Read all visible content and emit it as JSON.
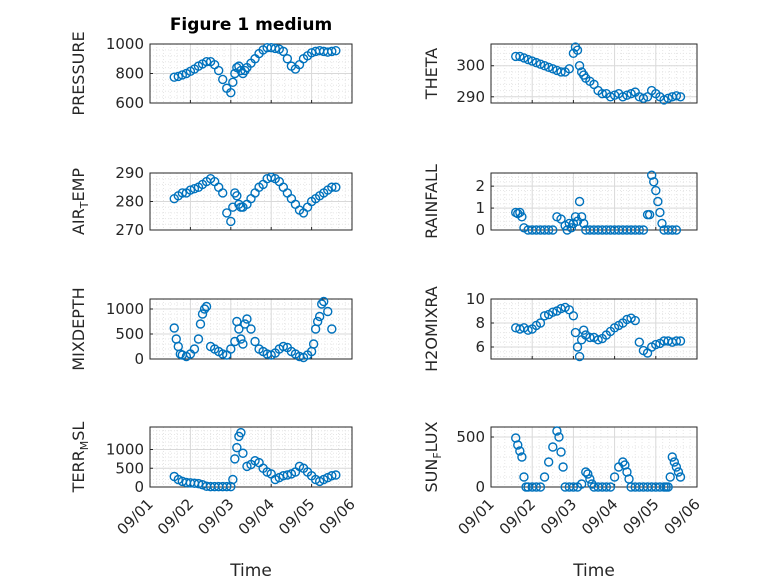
{
  "figure_title": "Figure 1 medium",
  "colors": {
    "marker": "#0072BD",
    "axis": "#262626",
    "grid": "#d9d9d9"
  },
  "chart_data": [
    {
      "type": "scatter",
      "title": "Figure 1 medium",
      "ylabel": "PRESSURE",
      "ylabel_sub": "",
      "ylabel_rest": "",
      "ylim": [
        600,
        1000
      ],
      "yticks": [
        600,
        800,
        1000
      ],
      "xlim": [
        0,
        5
      ],
      "grid": true,
      "x": [
        0.6,
        0.7,
        0.8,
        0.9,
        1.0,
        1.1,
        1.2,
        1.3,
        1.4,
        1.5,
        1.6,
        1.7,
        1.8,
        1.9,
        2.0,
        2.05,
        2.1,
        2.15,
        2.2,
        2.25,
        2.3,
        2.35,
        2.4,
        2.5,
        2.6,
        2.7,
        2.8,
        2.9,
        3.0,
        3.1,
        3.2,
        3.3,
        3.4,
        3.5,
        3.6,
        3.7,
        3.8,
        3.9,
        4.0,
        4.1,
        4.2,
        4.3,
        4.4,
        4.5,
        4.6
      ],
      "y": [
        775,
        780,
        790,
        800,
        815,
        830,
        850,
        865,
        880,
        880,
        860,
        820,
        760,
        700,
        670,
        740,
        800,
        840,
        850,
        820,
        800,
        820,
        840,
        870,
        900,
        935,
        960,
        975,
        975,
        970,
        965,
        950,
        900,
        850,
        830,
        860,
        900,
        920,
        940,
        950,
        955,
        950,
        945,
        950,
        955
      ]
    },
    {
      "type": "scatter",
      "ylabel": "THETA",
      "ylabel_sub": "",
      "ylabel_rest": "",
      "ylim": [
        288,
        307
      ],
      "yticks": [
        290,
        300
      ],
      "xlim": [
        0,
        5
      ],
      "grid": true,
      "x": [
        0.6,
        0.7,
        0.8,
        0.9,
        1.0,
        1.1,
        1.2,
        1.3,
        1.4,
        1.5,
        1.6,
        1.7,
        1.8,
        1.9,
        2.0,
        2.05,
        2.1,
        2.15,
        2.2,
        2.25,
        2.3,
        2.4,
        2.5,
        2.6,
        2.7,
        2.8,
        2.9,
        3.0,
        3.1,
        3.2,
        3.3,
        3.4,
        3.5,
        3.6,
        3.7,
        3.8,
        3.9,
        4.0,
        4.1,
        4.2,
        4.3,
        4.4,
        4.5,
        4.6
      ],
      "y": [
        303,
        303,
        302.5,
        302,
        301.5,
        301,
        300.5,
        300,
        299.5,
        299,
        298.5,
        298,
        298,
        299,
        304,
        306,
        305,
        300,
        298,
        297,
        296,
        295,
        294,
        292,
        291,
        291,
        290,
        290.5,
        291,
        290,
        290.5,
        291,
        291.5,
        290,
        289.5,
        290,
        292,
        291,
        290,
        289,
        289.5,
        290,
        290.3,
        290
      ],
      "series_name": ""
    },
    {
      "type": "scatter",
      "ylabel": "AIR",
      "ylabel_sub": "T",
      "ylabel_rest": "EMP",
      "ylim": [
        270,
        290
      ],
      "yticks": [
        270,
        280,
        290
      ],
      "xlim": [
        0,
        5
      ],
      "grid": true,
      "x": [
        0.6,
        0.7,
        0.8,
        0.9,
        1.0,
        1.1,
        1.2,
        1.3,
        1.4,
        1.5,
        1.6,
        1.7,
        1.8,
        1.9,
        2.0,
        2.05,
        2.1,
        2.15,
        2.2,
        2.25,
        2.3,
        2.4,
        2.5,
        2.6,
        2.7,
        2.8,
        2.9,
        3.0,
        3.1,
        3.2,
        3.3,
        3.4,
        3.5,
        3.6,
        3.7,
        3.8,
        3.9,
        4.0,
        4.1,
        4.2,
        4.3,
        4.4,
        4.5,
        4.6
      ],
      "y": [
        281,
        282,
        283,
        283,
        284,
        284.5,
        285,
        286,
        287,
        288,
        287,
        285,
        283,
        276,
        273,
        278,
        283,
        282,
        279,
        278,
        278,
        279,
        281,
        283,
        285,
        286,
        288,
        288.5,
        288,
        287,
        285,
        283,
        281,
        279,
        277,
        276,
        278,
        280,
        281,
        282,
        283,
        284,
        285,
        285
      ]
    },
    {
      "type": "scatter",
      "ylabel": "RAINFALL",
      "ylabel_sub": "",
      "ylabel_rest": "",
      "ylim": [
        0,
        2.6
      ],
      "yticks": [
        0,
        1,
        2
      ],
      "xlim": [
        0,
        5
      ],
      "grid": true,
      "x": [
        0.6,
        0.65,
        0.7,
        0.75,
        0.8,
        0.9,
        1.0,
        1.1,
        1.2,
        1.3,
        1.4,
        1.5,
        1.6,
        1.7,
        1.8,
        1.85,
        1.9,
        1.95,
        2.0,
        2.05,
        2.1,
        2.15,
        2.2,
        2.25,
        2.3,
        2.4,
        2.5,
        2.6,
        2.7,
        2.8,
        2.9,
        3.0,
        3.1,
        3.2,
        3.3,
        3.4,
        3.5,
        3.6,
        3.7,
        3.8,
        3.85,
        3.9,
        3.95,
        4.0,
        4.05,
        4.1,
        4.15,
        4.2,
        4.3,
        4.4,
        4.5
      ],
      "y": [
        0.8,
        0.75,
        0.8,
        0.6,
        0.1,
        0,
        0,
        0,
        0,
        0,
        0,
        0,
        0.6,
        0.5,
        0.2,
        0,
        0.3,
        0.1,
        0.3,
        0.6,
        0.4,
        1.3,
        0.6,
        0.3,
        0,
        0,
        0,
        0,
        0,
        0,
        0,
        0,
        0,
        0,
        0,
        0,
        0,
        0,
        0,
        0.7,
        0.7,
        2.5,
        2.2,
        1.8,
        1.3,
        0.8,
        0.3,
        0,
        0,
        0,
        0
      ]
    },
    {
      "type": "scatter",
      "ylabel": "MIXDEPTH",
      "ylabel_sub": "",
      "ylabel_rest": "",
      "ylim": [
        0,
        1200
      ],
      "yticks": [
        0,
        500,
        1000
      ],
      "xlim": [
        0,
        5
      ],
      "grid": true,
      "x": [
        0.6,
        0.65,
        0.7,
        0.75,
        0.8,
        0.9,
        1.0,
        1.1,
        1.2,
        1.25,
        1.3,
        1.35,
        1.4,
        1.5,
        1.6,
        1.7,
        1.8,
        1.9,
        2.0,
        2.1,
        2.15,
        2.2,
        2.25,
        2.3,
        2.35,
        2.4,
        2.5,
        2.6,
        2.7,
        2.8,
        2.9,
        3.0,
        3.1,
        3.2,
        3.3,
        3.4,
        3.5,
        3.6,
        3.7,
        3.8,
        3.9,
        4.0,
        4.05,
        4.1,
        4.15,
        4.2,
        4.25,
        4.3,
        4.4,
        4.5
      ],
      "y": [
        620,
        400,
        250,
        100,
        80,
        50,
        100,
        200,
        400,
        700,
        900,
        1000,
        1050,
        250,
        200,
        150,
        100,
        80,
        200,
        350,
        750,
        600,
        400,
        300,
        700,
        800,
        600,
        350,
        200,
        150,
        100,
        80,
        120,
        200,
        250,
        230,
        150,
        100,
        50,
        30,
        80,
        150,
        300,
        600,
        750,
        850,
        1100,
        1150,
        950,
        600
      ]
    },
    {
      "type": "scatter",
      "ylabel": "H2OMIXRA",
      "ylabel_sub": "",
      "ylabel_rest": "",
      "ylim": [
        5,
        10
      ],
      "yticks": [
        6,
        8,
        10
      ],
      "xlim": [
        0,
        5
      ],
      "grid": true,
      "x": [
        0.6,
        0.7,
        0.8,
        0.9,
        1.0,
        1.1,
        1.2,
        1.3,
        1.4,
        1.5,
        1.6,
        1.7,
        1.8,
        1.9,
        2.0,
        2.05,
        2.1,
        2.15,
        2.2,
        2.25,
        2.3,
        2.4,
        2.5,
        2.6,
        2.7,
        2.8,
        2.9,
        3.0,
        3.1,
        3.2,
        3.3,
        3.4,
        3.5,
        3.6,
        3.7,
        3.8,
        3.9,
        4.0,
        4.1,
        4.2,
        4.3,
        4.4,
        4.5,
        4.6
      ],
      "y": [
        7.6,
        7.5,
        7.6,
        7.4,
        7.5,
        7.8,
        8.0,
        8.6,
        8.7,
        8.9,
        9.0,
        9.2,
        9.3,
        9.1,
        8.6,
        7.2,
        6.0,
        5.2,
        6.6,
        7.4,
        7.0,
        6.8,
        6.8,
        6.6,
        6.7,
        7.0,
        7.3,
        7.6,
        7.8,
        8.0,
        8.3,
        8.4,
        8.2,
        6.4,
        5.7,
        5.5,
        6.0,
        6.2,
        6.3,
        6.5,
        6.5,
        6.4,
        6.5,
        6.5
      ]
    },
    {
      "type": "scatter",
      "ylabel": "TERR",
      "ylabel_sub": "M",
      "ylabel_rest": "SL",
      "ylim": [
        0,
        1600
      ],
      "yticks": [
        0,
        500,
        1000
      ],
      "xlim": [
        0,
        5
      ],
      "grid": true,
      "x": [
        0.6,
        0.7,
        0.8,
        0.9,
        1.0,
        1.1,
        1.2,
        1.3,
        1.4,
        1.5,
        1.6,
        1.7,
        1.8,
        1.9,
        2.0,
        2.05,
        2.1,
        2.15,
        2.2,
        2.25,
        2.3,
        2.4,
        2.5,
        2.6,
        2.7,
        2.8,
        2.9,
        3.0,
        3.1,
        3.2,
        3.3,
        3.4,
        3.5,
        3.6,
        3.7,
        3.8,
        3.9,
        4.0,
        4.1,
        4.2,
        4.3,
        4.4,
        4.5,
        4.6
      ],
      "y": [
        280,
        200,
        150,
        120,
        110,
        100,
        90,
        60,
        20,
        10,
        10,
        10,
        10,
        10,
        10,
        200,
        750,
        1050,
        1350,
        1450,
        900,
        550,
        600,
        700,
        650,
        500,
        400,
        350,
        200,
        250,
        300,
        320,
        350,
        400,
        550,
        500,
        400,
        300,
        200,
        150,
        200,
        250,
        300,
        320
      ]
    },
    {
      "type": "scatter",
      "ylabel": "SUN",
      "ylabel_sub": "F",
      "ylabel_rest": "LUX",
      "ylim": [
        0,
        600
      ],
      "yticks": [
        0,
        500
      ],
      "xlim": [
        0,
        5
      ],
      "grid": true,
      "x": [
        0.6,
        0.65,
        0.7,
        0.75,
        0.8,
        0.85,
        0.9,
        1.0,
        1.1,
        1.2,
        1.3,
        1.4,
        1.5,
        1.6,
        1.65,
        1.7,
        1.75,
        1.8,
        1.9,
        2.0,
        2.1,
        2.2,
        2.3,
        2.35,
        2.4,
        2.45,
        2.5,
        2.6,
        2.7,
        2.8,
        2.9,
        3.0,
        3.1,
        3.2,
        3.25,
        3.3,
        3.35,
        3.4,
        3.5,
        3.6,
        3.7,
        3.8,
        3.9,
        4.0,
        4.1,
        4.2,
        4.25,
        4.3,
        4.35,
        4.4,
        4.45,
        4.5,
        4.55,
        4.6
      ],
      "y": [
        490,
        420,
        360,
        300,
        100,
        0,
        0,
        0,
        0,
        0,
        100,
        250,
        400,
        560,
        500,
        350,
        200,
        0,
        0,
        0,
        0,
        30,
        150,
        130,
        80,
        30,
        0,
        0,
        0,
        0,
        0,
        100,
        200,
        250,
        220,
        150,
        80,
        0,
        0,
        0,
        0,
        0,
        0,
        0,
        0,
        0,
        0,
        0,
        100,
        300,
        250,
        200,
        150,
        100
      ]
    }
  ],
  "x_tick_labels": [
    "09/01",
    "09/02",
    "09/03",
    "09/04",
    "09/05",
    "09/06"
  ],
  "xlabel": "Time"
}
